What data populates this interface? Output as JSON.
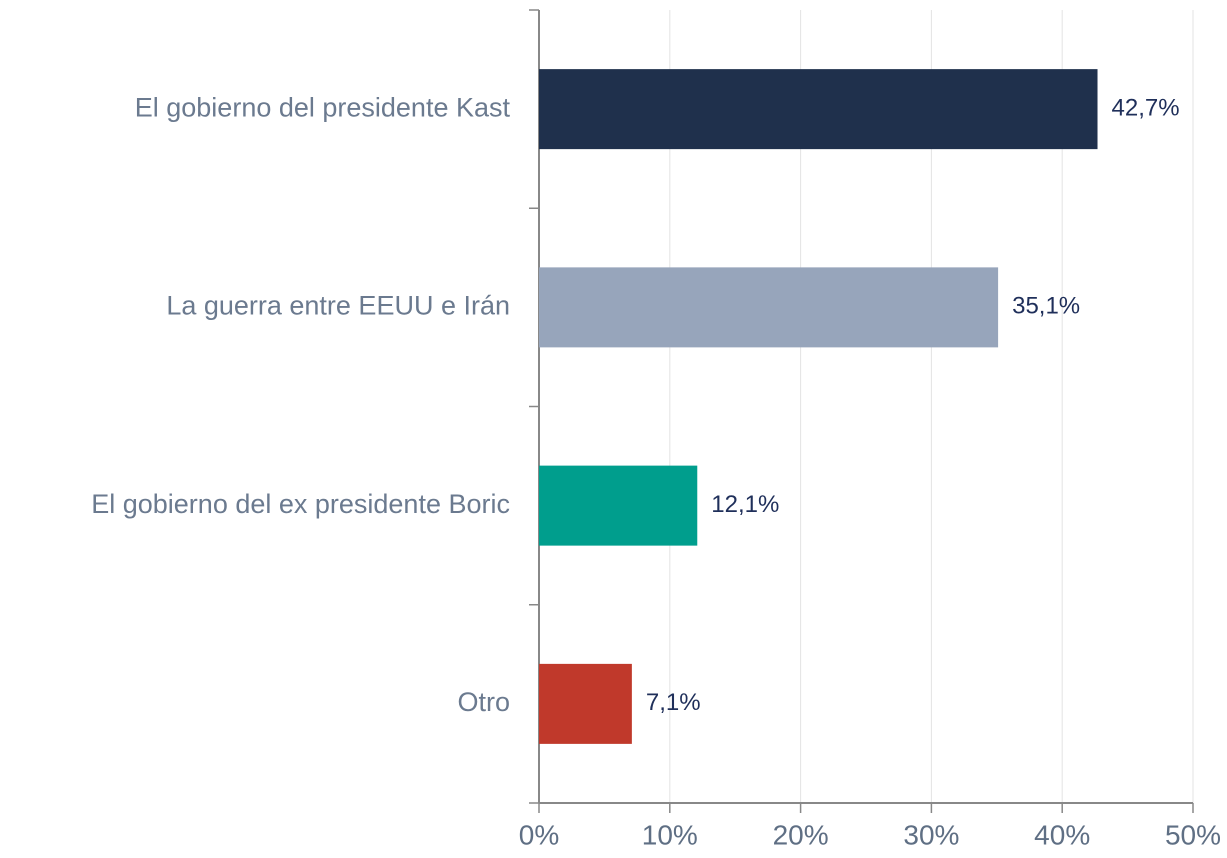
{
  "chart_data": {
    "type": "barh",
    "categories": [
      "El gobierno del presidente Kast",
      "La guerra entre EEUU e Irán",
      "El gobierno del ex presidente Boric",
      "Otro"
    ],
    "values": [
      42.7,
      35.1,
      12.1,
      7.1
    ],
    "value_labels": [
      "42,7%",
      "35,1%",
      "12,1%",
      "7,1%"
    ],
    "colors": [
      "#1f304c",
      "#97a5bb",
      "#009e8d",
      "#c0392b"
    ],
    "xlim": [
      0,
      50
    ],
    "xticks": [
      {
        "value": 0,
        "label": "0%"
      },
      {
        "value": 10,
        "label": "10%"
      },
      {
        "value": 20,
        "label": "20%"
      },
      {
        "value": 30,
        "label": "30%"
      },
      {
        "value": 40,
        "label": "40%"
      },
      {
        "value": 50,
        "label": "50%"
      }
    ],
    "grid": true
  }
}
